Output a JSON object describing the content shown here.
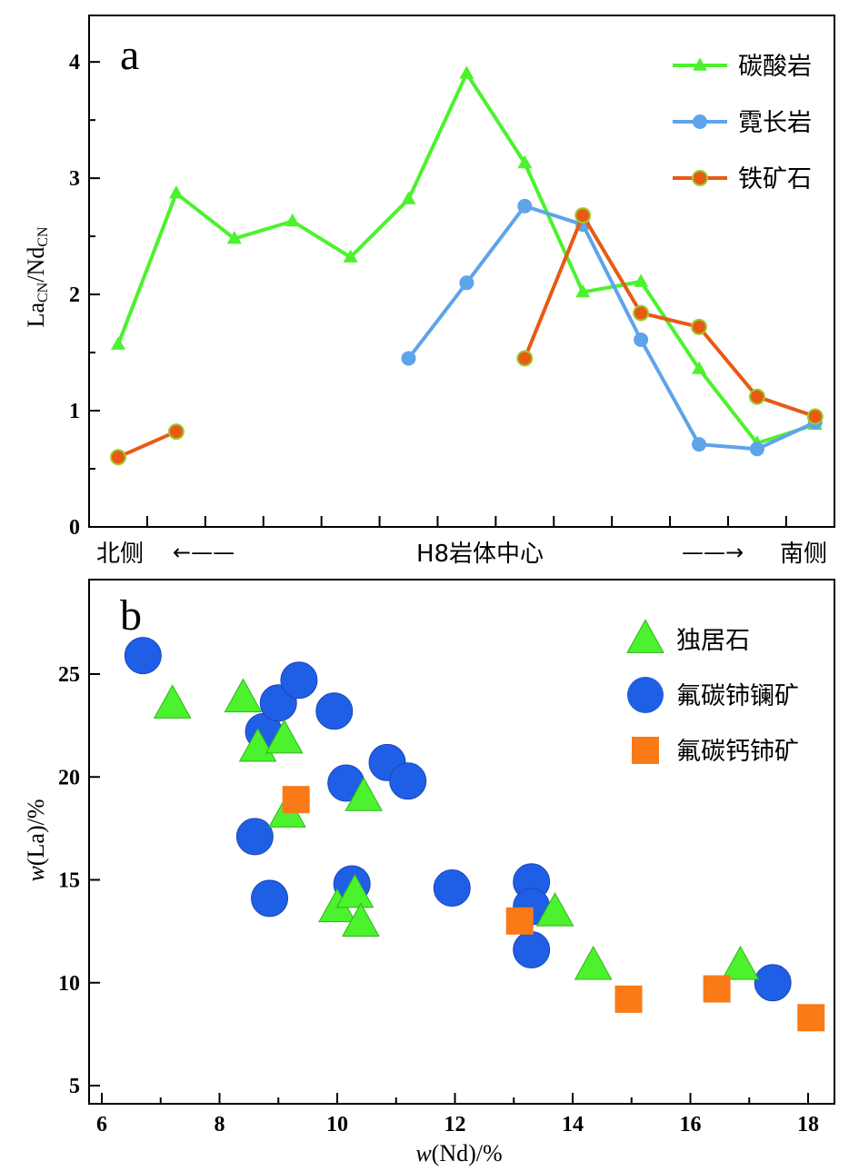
{
  "colors": {
    "carbonatite": "#4cf22d",
    "syenite": "#5fa3ea",
    "ironore": "#e85a14",
    "ironore_marker_edge": "#9acd32",
    "monazite": "#4cf22d",
    "bastnaesite": "#1e5fe6",
    "parisite": "#f97a17"
  },
  "chart_data": [
    {
      "panel": "a",
      "type": "line",
      "ylabel_main": "La",
      "ylabel_sub1": "CN",
      "ylabel_mid": "/Nd",
      "ylabel_sub2": "CN",
      "ylim": [
        0,
        4.4
      ],
      "yticks": [
        0,
        1,
        2,
        3,
        4
      ],
      "x_positions": 13,
      "bottom_labels": {
        "left": "北侧",
        "left_arrow": "←——",
        "center": "H8岩体中心",
        "right_arrow": "——→",
        "right": "南侧"
      },
      "legend_placement": "top-right",
      "series": [
        {
          "name": "碳酸岩",
          "marker": "triangle",
          "color_key": "carbonatite",
          "points": [
            [
              0,
              1.57
            ],
            [
              1,
              2.87
            ],
            [
              2,
              2.48
            ],
            [
              3,
              2.63
            ],
            [
              4,
              2.32
            ],
            [
              5,
              2.82
            ],
            [
              6,
              3.9
            ],
            [
              7,
              3.13
            ],
            [
              8,
              2.02
            ],
            [
              9,
              2.11
            ],
            [
              10,
              1.36
            ],
            [
              11,
              0.72
            ],
            [
              12,
              0.88
            ]
          ]
        },
        {
          "name": "霓长岩",
          "marker": "circle",
          "color_key": "syenite",
          "points": [
            [
              5,
              1.45
            ],
            [
              6,
              2.1
            ],
            [
              7,
              2.76
            ],
            [
              8,
              2.6
            ],
            [
              9,
              1.61
            ],
            [
              10,
              0.71
            ],
            [
              11,
              0.67
            ],
            [
              12,
              0.9
            ]
          ]
        },
        {
          "name": "铁矿石",
          "marker": "circle",
          "color_key": "ironore",
          "segments": [
            [
              [
                0,
                0.6
              ],
              [
                1,
                0.82
              ]
            ],
            [
              [
                7,
                1.45
              ],
              [
                8,
                2.68
              ],
              [
                9,
                1.84
              ],
              [
                10,
                1.72
              ],
              [
                11,
                1.12
              ],
              [
                12,
                0.95
              ]
            ]
          ]
        }
      ]
    },
    {
      "panel": "b",
      "type": "scatter",
      "xlabel_w": "w",
      "xlabel_rest": "(Nd)/%",
      "ylabel_w": "w",
      "ylabel_rest": "(La)/%",
      "xlim": [
        6,
        18.5
      ],
      "ylim": [
        4,
        29
      ],
      "xticks": [
        6,
        8,
        10,
        12,
        14,
        16,
        18
      ],
      "yticks": [
        5,
        10,
        15,
        20,
        25
      ],
      "legend_placement": "top-right",
      "series": [
        {
          "name": "独居石",
          "marker": "triangle",
          "color_key": "monazite",
          "points": [
            [
              7.2,
              23.5
            ],
            [
              8.4,
              23.8
            ],
            [
              8.65,
              21.4
            ],
            [
              9.1,
              21.8
            ],
            [
              9.15,
              18.2
            ],
            [
              10.45,
              19.0
            ],
            [
              10.0,
              13.6
            ],
            [
              10.3,
              14.3
            ],
            [
              10.4,
              12.9
            ],
            [
              13.7,
              13.4
            ],
            [
              14.35,
              10.8
            ],
            [
              16.85,
              10.8
            ]
          ]
        },
        {
          "name": "氟碳铈镧矿",
          "marker": "circle",
          "color_key": "bastnaesite",
          "points": [
            [
              6.7,
              25.9
            ],
            [
              8.75,
              22.2
            ],
            [
              9.0,
              23.6
            ],
            [
              9.35,
              24.7
            ],
            [
              9.95,
              23.2
            ],
            [
              10.85,
              20.7
            ],
            [
              10.15,
              19.7
            ],
            [
              11.2,
              19.8
            ],
            [
              8.6,
              17.1
            ],
            [
              8.85,
              14.1
            ],
            [
              10.25,
              14.8
            ],
            [
              11.95,
              14.6
            ],
            [
              13.3,
              14.9
            ],
            [
              13.3,
              13.7
            ],
            [
              13.3,
              11.6
            ],
            [
              17.4,
              10.0
            ]
          ]
        },
        {
          "name": "氟碳钙铈矿",
          "marker": "square",
          "color_key": "parisite",
          "points": [
            [
              9.3,
              18.9
            ],
            [
              13.1,
              13.0
            ],
            [
              14.95,
              9.2
            ],
            [
              16.45,
              9.7
            ],
            [
              18.05,
              8.3
            ]
          ]
        }
      ]
    }
  ]
}
